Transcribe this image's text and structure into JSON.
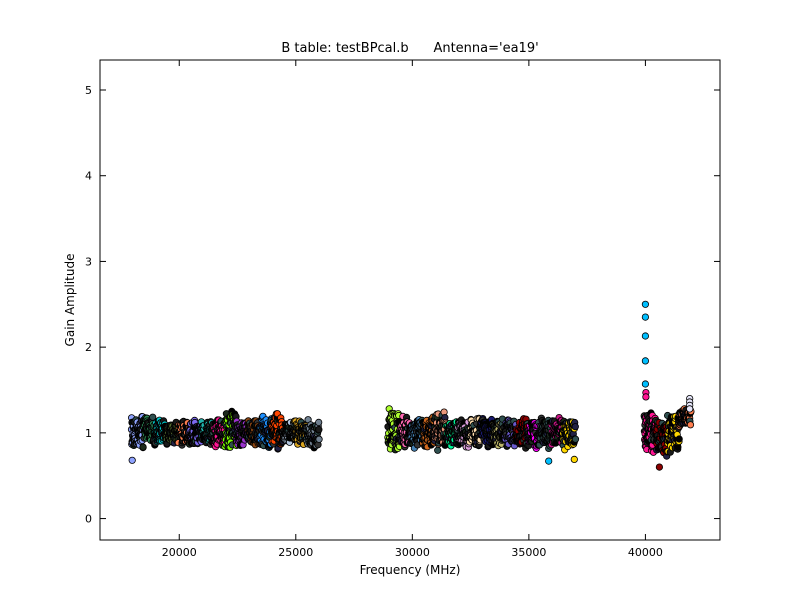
{
  "chart_data": {
    "type": "scatter",
    "title": "B table: testBPcal.b      Antenna='ea19'",
    "xlabel": "Frequency (MHz)",
    "ylabel": "Gain Amplitude",
    "xlim": [
      16600,
      43200
    ],
    "ylim": [
      -0.25,
      5.35
    ],
    "xticks": [
      20000,
      25000,
      30000,
      35000,
      40000
    ],
    "yticks": [
      0,
      1,
      2,
      3,
      4,
      5
    ],
    "grid": false,
    "legend": "none",
    "spectral_windows": [
      {
        "x_start": 17950,
        "x_end": 18450,
        "y_mid": 1.0,
        "y_spread": 0.22,
        "color": "#8fa3ff"
      },
      {
        "x_start": 18450,
        "x_end": 18950,
        "y_mid": 1.02,
        "y_spread": 0.18,
        "color": "#2e8b57"
      },
      {
        "x_start": 18950,
        "x_end": 19450,
        "y_mid": 1.0,
        "y_spread": 0.16,
        "color": "#00ced1"
      },
      {
        "x_start": 19450,
        "x_end": 19950,
        "y_mid": 1.0,
        "y_spread": 0.15,
        "color": "#556b2f"
      },
      {
        "x_start": 19950,
        "x_end": 20450,
        "y_mid": 1.0,
        "y_spread": 0.16,
        "color": "#ff7f50"
      },
      {
        "x_start": 20450,
        "x_end": 20950,
        "y_mid": 1.0,
        "y_spread": 0.15,
        "color": "#7b68ee"
      },
      {
        "x_start": 20950,
        "x_end": 21450,
        "y_mid": 1.0,
        "y_spread": 0.16,
        "color": "#20b2aa"
      },
      {
        "x_start": 21450,
        "x_end": 21950,
        "y_mid": 1.0,
        "y_spread": 0.18,
        "color": "#ff1493"
      },
      {
        "x_start": 21950,
        "x_end": 22450,
        "y_mid": 1.05,
        "y_spread": 0.28,
        "color": "#7cfc00"
      },
      {
        "x_start": 22450,
        "x_end": 22950,
        "y_mid": 1.0,
        "y_spread": 0.16,
        "color": "#9932cc"
      },
      {
        "x_start": 22950,
        "x_end": 23450,
        "y_mid": 1.0,
        "y_spread": 0.16,
        "color": "#8b4513"
      },
      {
        "x_start": 23450,
        "x_end": 23950,
        "y_mid": 1.0,
        "y_spread": 0.22,
        "color": "#1e90ff"
      },
      {
        "x_start": 23950,
        "x_end": 24450,
        "y_mid": 1.02,
        "y_spread": 0.25,
        "color": "#ff4500"
      },
      {
        "x_start": 24450,
        "x_end": 24950,
        "y_mid": 1.0,
        "y_spread": 0.15,
        "color": "#b0c4de"
      },
      {
        "x_start": 24950,
        "x_end": 25450,
        "y_mid": 1.0,
        "y_spread": 0.15,
        "color": "#daa520"
      },
      {
        "x_start": 25450,
        "x_end": 26000,
        "y_mid": 1.0,
        "y_spread": 0.18,
        "color": "#708090"
      },
      {
        "x_start": 28950,
        "x_end": 29450,
        "y_mid": 1.02,
        "y_spread": 0.28,
        "color": "#adff2f"
      },
      {
        "x_start": 29450,
        "x_end": 29950,
        "y_mid": 1.0,
        "y_spread": 0.2,
        "color": "#ff69b4"
      },
      {
        "x_start": 29950,
        "x_end": 30450,
        "y_mid": 1.0,
        "y_spread": 0.2,
        "color": "#4682b4"
      },
      {
        "x_start": 30450,
        "x_end": 30950,
        "y_mid": 1.0,
        "y_spread": 0.2,
        "color": "#d2691e"
      },
      {
        "x_start": 30950,
        "x_end": 31450,
        "y_mid": 1.02,
        "y_spread": 0.24,
        "color": "#e9967a"
      },
      {
        "x_start": 31450,
        "x_end": 31950,
        "y_mid": 1.0,
        "y_spread": 0.16,
        "color": "#00fa9a"
      },
      {
        "x_start": 31950,
        "x_end": 32450,
        "y_mid": 1.0,
        "y_spread": 0.18,
        "color": "#dda0dd"
      },
      {
        "x_start": 32450,
        "x_end": 32950,
        "y_mid": 1.0,
        "y_spread": 0.2,
        "color": "#ffdead"
      },
      {
        "x_start": 32950,
        "x_end": 33450,
        "y_mid": 1.0,
        "y_spread": 0.18,
        "color": "#191970"
      },
      {
        "x_start": 33450,
        "x_end": 33950,
        "y_mid": 1.0,
        "y_spread": 0.18,
        "color": "#bdb76b"
      },
      {
        "x_start": 33950,
        "x_end": 34450,
        "y_mid": 1.0,
        "y_spread": 0.18,
        "color": "#6a5acd"
      },
      {
        "x_start": 34450,
        "x_end": 34950,
        "y_mid": 1.0,
        "y_spread": 0.2,
        "color": "#8b0000"
      },
      {
        "x_start": 34950,
        "x_end": 35450,
        "y_mid": 1.0,
        "y_spread": 0.2,
        "color": "#ff00ff"
      },
      {
        "x_start": 35450,
        "x_end": 35950,
        "y_mid": 1.0,
        "y_spread": 0.2,
        "color": "#2f4f4f"
      },
      {
        "x_start": 35950,
        "x_end": 36450,
        "y_mid": 1.0,
        "y_spread": 0.18,
        "color": "#c71585"
      },
      {
        "x_start": 36450,
        "x_end": 37000,
        "y_mid": 0.98,
        "y_spread": 0.2,
        "color": "#ffd700"
      },
      {
        "x_start": 39950,
        "x_end": 40450,
        "y_mid": 1.02,
        "y_spread": 0.28,
        "color": "#ff1493"
      },
      {
        "x_start": 40450,
        "x_end": 40950,
        "y_mid": 0.92,
        "y_spread": 0.25,
        "color": "#8b0000"
      },
      {
        "x_start": 40950,
        "x_end": 41450,
        "y_mid": 1.0,
        "y_spread": 0.25,
        "color": "#ffd700"
      },
      {
        "x_start": 41450,
        "x_end": 41950,
        "y_mid": 1.18,
        "y_spread": 0.12,
        "color": "#ff7f50"
      }
    ],
    "outliers": [
      {
        "x": 40000,
        "y": 2.5,
        "color": "#00bfff"
      },
      {
        "x": 40000,
        "y": 2.35,
        "color": "#00bfff"
      },
      {
        "x": 40000,
        "y": 2.13,
        "color": "#00bfff"
      },
      {
        "x": 40000,
        "y": 1.84,
        "color": "#00bfff"
      },
      {
        "x": 40000,
        "y": 1.57,
        "color": "#00bfff"
      },
      {
        "x": 40020,
        "y": 1.47,
        "color": "#ff1493"
      },
      {
        "x": 40020,
        "y": 1.42,
        "color": "#ff1493"
      },
      {
        "x": 41900,
        "y": 1.4,
        "color": "#e6e6fa"
      },
      {
        "x": 41900,
        "y": 1.36,
        "color": "#e6e6fa"
      },
      {
        "x": 41900,
        "y": 1.32,
        "color": "#e6e6fa"
      },
      {
        "x": 41900,
        "y": 1.28,
        "color": "#e6e6fa"
      },
      {
        "x": 35850,
        "y": 0.67,
        "color": "#00bfff"
      },
      {
        "x": 36950,
        "y": 0.69,
        "color": "#ffd700"
      },
      {
        "x": 17980,
        "y": 0.68,
        "color": "#8fa3ff"
      },
      {
        "x": 40600,
        "y": 0.6,
        "color": "#8b0000"
      }
    ]
  }
}
